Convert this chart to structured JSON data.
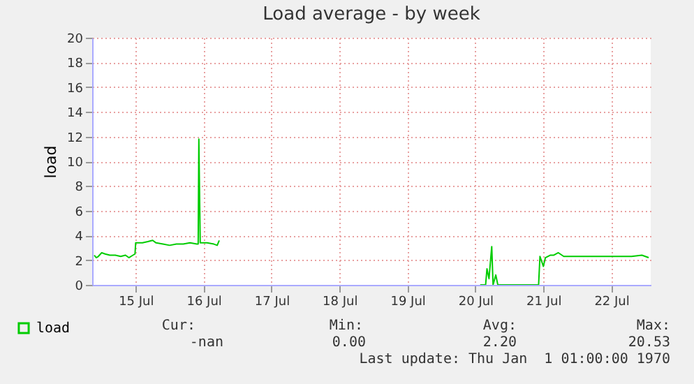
{
  "chart_data": {
    "type": "line",
    "title": "Load average - by week",
    "ylabel": "load",
    "x": [
      "--07-14T09:22",
      "--07-14T10:05",
      "--07-14T10:48",
      "--07-14T12:00",
      "--07-14T13:12",
      "--07-14T14:53",
      "--07-14T16:48",
      "--07-14T18:43",
      "--07-14T20:24",
      "--07-14T21:36",
      "--07-14T23:02",
      "--07-14T23:46",
      "--07-15T00:00",
      "--07-15T02:24",
      "--07-15T04:19",
      "--07-15T06:00",
      "--07-15T07:12",
      "--07-15T09:36",
      "--07-15T12:00",
      "--07-15T14:24",
      "--07-15T16:48",
      "--07-15T19:12",
      "--07-15T21:36",
      "--07-15T22:05",
      "--07-15T22:19",
      "--07-15T22:48",
      "--07-16T01:12",
      "--07-16T03:36",
      "--07-16T04:48",
      "--07-16T05:31",
      "--07-16T12:00",
      "--07-20T01:41",
      "--07-20T03:36",
      "--07-20T04:05",
      "--07-20T04:48",
      "--07-20T05:46",
      "--07-20T06:14",
      "--07-20T07:12",
      "--07-20T07:55",
      "--07-20T14:24",
      "--07-20T22:19",
      "--07-20T22:48",
      "--07-21T00:00",
      "--07-21T00:43",
      "--07-21T02:24",
      "--07-21T03:36",
      "--07-21T05:17",
      "--07-21T07:12",
      "--07-21T12:00",
      "--07-21T16:48",
      "--07-21T21:36",
      "--07-22T02:24",
      "--07-22T07:12",
      "--07-22T10:48",
      "--07-22T13:12"
    ],
    "series": [
      {
        "name": "load",
        "color": "#00cc00",
        "values": [
          2.4,
          2.2,
          2.3,
          2.6,
          2.5,
          2.4,
          2.4,
          2.3,
          2.4,
          2.2,
          2.4,
          2.5,
          3.4,
          3.4,
          3.5,
          3.6,
          3.4,
          3.3,
          3.2,
          3.3,
          3.3,
          3.4,
          3.3,
          3.3,
          11.8,
          3.4,
          3.4,
          3.3,
          3.2,
          3.6,
          null,
          0,
          0,
          1.3,
          0.5,
          3.1,
          0,
          0.8,
          0,
          0,
          0,
          2.3,
          1.5,
          2.2,
          2.4,
          2.4,
          2.6,
          2.3,
          2.3,
          2.3,
          2.3,
          2.3,
          2.3,
          2.4,
          2.2
        ]
      }
    ],
    "xlim": [
      "--07-14T08:38",
      "--07-22T13:55"
    ],
    "xticks": [
      {
        "value": "--07-15",
        "label": "15 Jul"
      },
      {
        "value": "--07-16",
        "label": "16 Jul"
      },
      {
        "value": "--07-17",
        "label": "17 Jul"
      },
      {
        "value": "--07-18",
        "label": "18 Jul"
      },
      {
        "value": "--07-19",
        "label": "19 Jul"
      },
      {
        "value": "--07-20",
        "label": "20 Jul"
      },
      {
        "value": "--07-21",
        "label": "21 Jul"
      },
      {
        "value": "--07-22",
        "label": "22 Jul"
      }
    ],
    "ylim": [
      0,
      20
    ],
    "yticks": [
      0,
      2,
      4,
      6,
      8,
      10,
      12,
      14,
      16,
      18,
      20
    ],
    "grid": true,
    "legend": "bottom left",
    "annotations": [
      "Cur:",
      "Min:",
      "Avg:",
      "Max:",
      "-nan",
      "0.00",
      "2.20",
      "20.53",
      "Last update: Thu Jan  1 01:00:00 1970"
    ]
  }
}
